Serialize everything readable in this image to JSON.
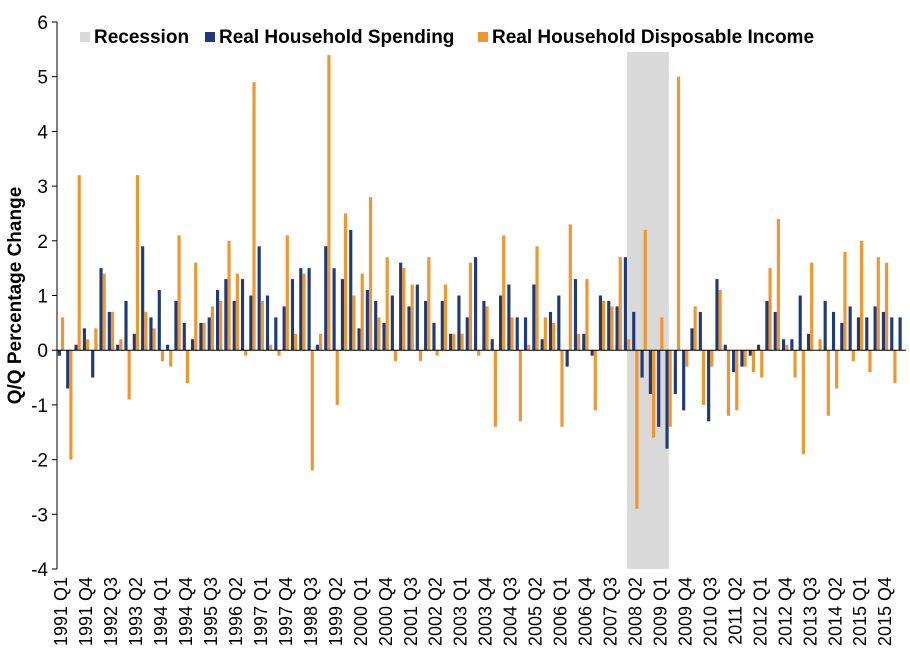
{
  "chart_data": {
    "type": "bar",
    "ylabel": "Q/Q Percentage Change",
    "ylim": [
      -4,
      6
    ],
    "yticks": [
      -4,
      -3,
      -2,
      -1,
      0,
      1,
      2,
      3,
      4,
      5,
      6
    ],
    "grid": false,
    "legend_position": "top",
    "legend": [
      "Recession",
      "Real Household Spending",
      "Real Household Disposable Income"
    ],
    "colors": {
      "spending": "#1F3A7A",
      "income": "#F0962C",
      "recession": "#D9D9D9",
      "axis": "#000000"
    },
    "start_year": 1991,
    "x_tick_labels": [
      "1991 Q1",
      "1991 Q4",
      "1992 Q3",
      "1993 Q2",
      "1994 Q1",
      "1994 Q4",
      "1995 Q3",
      "1996 Q2",
      "1997 Q1",
      "1997 Q4",
      "1998 Q3",
      "1999 Q2",
      "2000 Q1",
      "2000 Q4",
      "2001 Q3",
      "2002 Q2",
      "2003 Q1",
      "2003 Q4",
      "2004 Q3",
      "2005 Q2",
      "2006 Q1",
      "2006 Q4",
      "2007 Q3",
      "2008 Q2",
      "2009 Q1",
      "2009 Q4",
      "2010 Q3",
      "2011 Q2",
      "2012 Q1",
      "2012 Q4",
      "2013 Q3",
      "2014 Q2",
      "2015 Q1",
      "2015 Q4"
    ],
    "recession_range": [
      "2008 Q1",
      "2009 Q2"
    ],
    "series": [
      {
        "name": "Real Household Spending",
        "values": [
          -0.1,
          -0.7,
          0.1,
          0.4,
          -0.5,
          1.5,
          0.7,
          0.1,
          0.9,
          0.3,
          1.9,
          0.6,
          1.1,
          0.1,
          0.9,
          0.5,
          0.2,
          0.5,
          0.6,
          1.1,
          1.3,
          0.9,
          1.3,
          1.0,
          1.9,
          1.0,
          0.6,
          0.8,
          1.3,
          1.5,
          1.5,
          0.1,
          1.9,
          1.5,
          1.3,
          2.2,
          0.4,
          1.1,
          0.9,
          0.5,
          1.0,
          1.6,
          0.8,
          1.2,
          0.9,
          0.5,
          0.9,
          0.3,
          1.0,
          0.6,
          1.7,
          0.9,
          0.2,
          1.0,
          1.2,
          0.6,
          0.6,
          1.2,
          0.2,
          0.7,
          1.0,
          -0.3,
          1.3,
          0.3,
          -0.1,
          1.0,
          0.9,
          0.8,
          1.7,
          0.7,
          -0.5,
          -0.8,
          -1.4,
          -1.8,
          -0.8,
          -1.1,
          0.4,
          0.7,
          -1.3,
          1.3,
          0.1,
          -0.4,
          -0.3,
          -0.1,
          0.1,
          0.9,
          0.7,
          0.2,
          0.2,
          1.0,
          0.3,
          0.0,
          0.9,
          0.7,
          0.5,
          0.8,
          0.6,
          0.6,
          0.8,
          0.7,
          0.6,
          0.6
        ]
      },
      {
        "name": "Real Household Disposable Income",
        "values": [
          0.6,
          -2.0,
          3.2,
          0.2,
          0.4,
          1.4,
          0.7,
          0.2,
          -0.9,
          3.2,
          0.7,
          0.4,
          -0.2,
          -0.3,
          2.1,
          -0.6,
          1.6,
          0.5,
          0.8,
          0.9,
          2.0,
          1.4,
          -0.1,
          4.9,
          0.9,
          0.1,
          -0.1,
          2.1,
          0.3,
          1.4,
          -2.2,
          0.3,
          5.4,
          -1.0,
          2.5,
          1.0,
          1.4,
          2.8,
          0.6,
          1.7,
          -0.2,
          1.5,
          1.2,
          -0.2,
          1.7,
          -0.1,
          1.2,
          0.3,
          0.3,
          1.6,
          -0.1,
          0.8,
          -1.4,
          2.1,
          0.6,
          -1.3,
          0.1,
          1.9,
          0.6,
          0.5,
          -1.4,
          2.3,
          0.3,
          1.3,
          -1.1,
          0.9,
          0.8,
          1.7,
          0.2,
          -2.9,
          2.2,
          -1.6,
          0.6,
          -1.4,
          5.0,
          -0.3,
          0.8,
          -1.0,
          -0.3,
          1.1,
          -1.2,
          -1.1,
          -0.3,
          -0.4,
          -0.5,
          1.5,
          2.4,
          0.1,
          -0.5,
          -1.9,
          1.6,
          0.2,
          -1.2,
          -0.7,
          1.8,
          -0.2,
          2.0,
          -0.4,
          1.7,
          1.6,
          -0.6,
          0.0
        ]
      }
    ]
  }
}
